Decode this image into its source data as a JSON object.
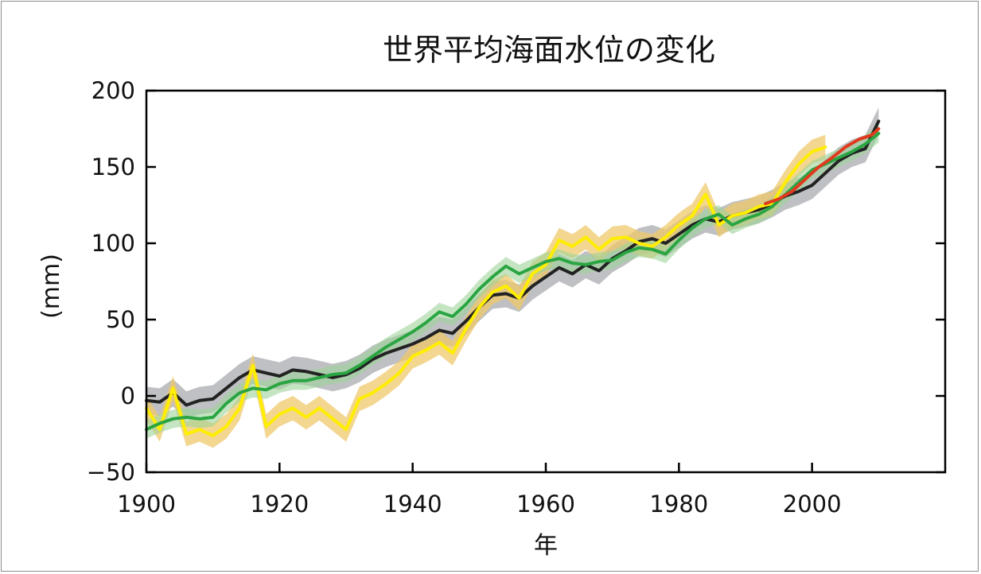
{
  "chart_data": {
    "type": "line",
    "title": "世界平均海面水位の変化",
    "xlabel": "年",
    "ylabel": "(mm)",
    "xlim": [
      1900,
      2020
    ],
    "ylim": [
      -50,
      200
    ],
    "xticks": [
      1900,
      1920,
      1940,
      1960,
      1980,
      2000
    ],
    "yticks": [
      -50,
      0,
      50,
      100,
      150,
      200
    ],
    "xtick_labels": [
      "1900",
      "1920",
      "1940",
      "1960",
      "1980",
      "2000"
    ],
    "ytick_labels": [
      "−50",
      "0",
      "50",
      "100",
      "150",
      "200"
    ],
    "grid": false,
    "series": [
      {
        "name": "black",
        "color": "#222222",
        "band_color": "#a9abaf",
        "band_halfwidth": 9,
        "x": [
          1900,
          1902,
          1904,
          1906,
          1908,
          1910,
          1912,
          1914,
          1916,
          1918,
          1920,
          1922,
          1924,
          1926,
          1928,
          1930,
          1932,
          1934,
          1936,
          1938,
          1940,
          1942,
          1944,
          1946,
          1948,
          1950,
          1952,
          1954,
          1956,
          1958,
          1960,
          1962,
          1964,
          1966,
          1968,
          1970,
          1972,
          1974,
          1976,
          1978,
          1980,
          1982,
          1984,
          1986,
          1988,
          1990,
          1992,
          1994,
          1996,
          1998,
          2000,
          2002,
          2004,
          2006,
          2008,
          2010
        ],
        "y": [
          -3,
          -4,
          2,
          -6,
          -3,
          -2,
          5,
          12,
          17,
          15,
          13,
          17,
          16,
          14,
          12,
          14,
          18,
          24,
          28,
          31,
          34,
          38,
          43,
          41,
          49,
          58,
          66,
          67,
          64,
          72,
          78,
          84,
          80,
          86,
          82,
          90,
          95,
          101,
          103,
          100,
          106,
          112,
          116,
          114,
          118,
          120,
          122,
          126,
          131,
          134,
          138,
          146,
          154,
          159,
          162,
          180
        ]
      },
      {
        "name": "yellow",
        "color": "#ffee00",
        "band_color": "#efc86a",
        "band_halfwidth": 8,
        "x": [
          1900,
          1902,
          1904,
          1906,
          1908,
          1910,
          1912,
          1914,
          1916,
          1918,
          1920,
          1922,
          1924,
          1926,
          1928,
          1930,
          1932,
          1934,
          1936,
          1938,
          1940,
          1942,
          1944,
          1946,
          1948,
          1950,
          1952,
          1954,
          1956,
          1958,
          1960,
          1962,
          1964,
          1966,
          1968,
          1970,
          1972,
          1974,
          1976,
          1978,
          1980,
          1982,
          1984,
          1986,
          1988,
          1990,
          1992,
          1994,
          1996,
          1998,
          2000,
          2002
        ],
        "y": [
          -8,
          -22,
          5,
          -25,
          -22,
          -26,
          -20,
          -8,
          20,
          -20,
          -12,
          -8,
          -14,
          -8,
          -15,
          -22,
          -2,
          2,
          8,
          15,
          26,
          30,
          35,
          28,
          44,
          58,
          68,
          72,
          64,
          80,
          86,
          102,
          98,
          104,
          96,
          103,
          104,
          100,
          98,
          104,
          112,
          118,
          132,
          112,
          118,
          120,
          124,
          126,
          140,
          152,
          160,
          163
        ]
      },
      {
        "name": "green",
        "color": "#2aa542",
        "band_color": "#9fd39a",
        "band_halfwidth": 6,
        "x": [
          1900,
          1902,
          1904,
          1906,
          1908,
          1910,
          1912,
          1914,
          1916,
          1918,
          1920,
          1922,
          1924,
          1926,
          1928,
          1930,
          1932,
          1934,
          1936,
          1938,
          1940,
          1942,
          1944,
          1946,
          1948,
          1950,
          1952,
          1954,
          1956,
          1958,
          1960,
          1962,
          1964,
          1966,
          1968,
          1970,
          1972,
          1974,
          1976,
          1978,
          1980,
          1982,
          1984,
          1986,
          1988,
          1990,
          1992,
          1994,
          1996,
          1998,
          2000,
          2002,
          2004,
          2006,
          2008,
          2010
        ],
        "y": [
          -22,
          -18,
          -15,
          -14,
          -15,
          -14,
          -5,
          2,
          5,
          4,
          8,
          10,
          10,
          12,
          14,
          15,
          20,
          26,
          32,
          37,
          42,
          48,
          55,
          52,
          60,
          70,
          78,
          85,
          80,
          84,
          88,
          90,
          87,
          86,
          88,
          89,
          94,
          97,
          96,
          93,
          102,
          110,
          116,
          119,
          112,
          116,
          119,
          124,
          132,
          140,
          148,
          152,
          156,
          160,
          165,
          172
        ]
      },
      {
        "name": "red",
        "color": "#e03a1e",
        "band_color": "",
        "band_halfwidth": 0,
        "x": [
          1993,
          1995,
          1997,
          1999,
          2001,
          2003,
          2005,
          2007,
          2009,
          2010
        ],
        "y": [
          126,
          129,
          134,
          142,
          150,
          156,
          163,
          168,
          171,
          175
        ]
      }
    ]
  }
}
